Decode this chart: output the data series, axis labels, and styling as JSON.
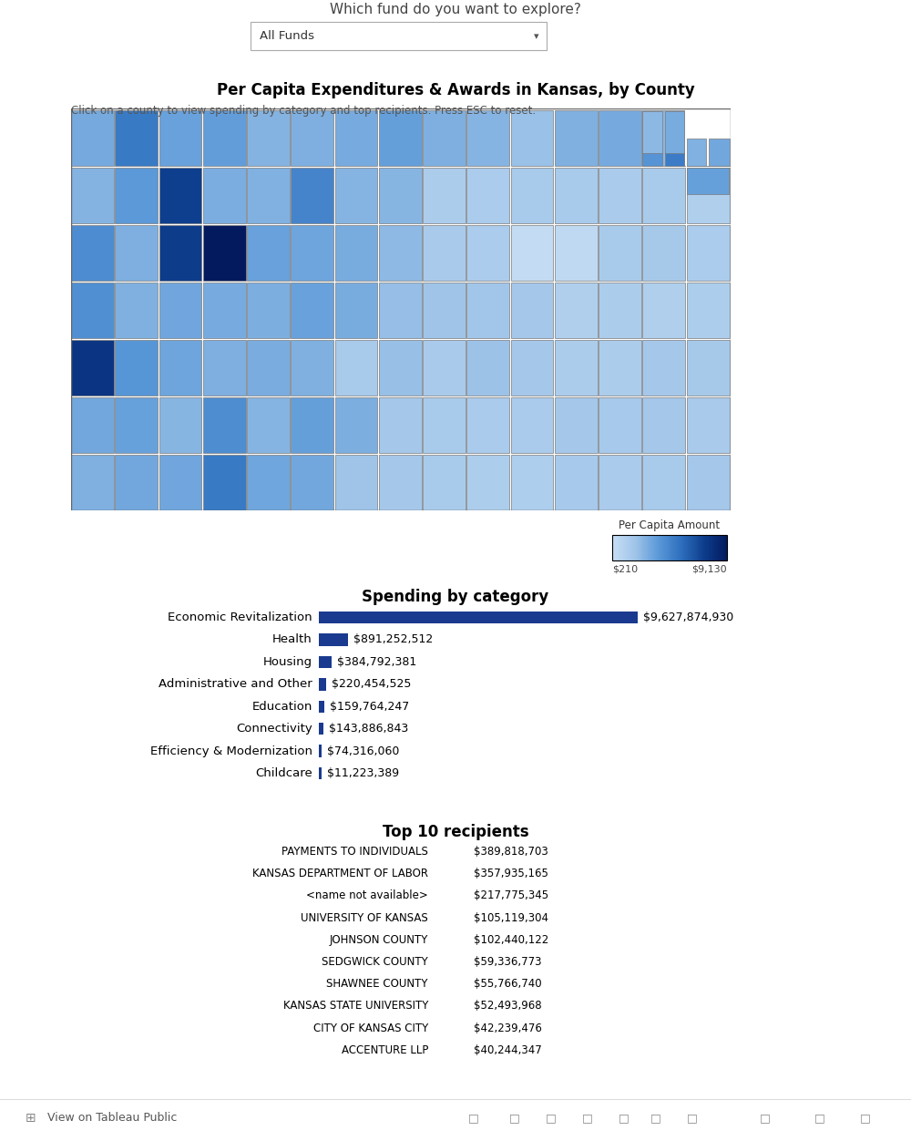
{
  "title_top": "Which fund do you want to explore?",
  "dropdown_text": "All Funds",
  "map_title": "Per Capita Expenditures & Awards in Kansas, by County",
  "map_subtitle": "Click on a county to view spending by category and top recipients. Press ESC to reset.",
  "colorbar_title": "Per Capita Amount",
  "colorbar_min_label": "$210",
  "colorbar_max_label": "$9,130",
  "spending_title": "Spending by category",
  "spending_categories": [
    "Economic Revitalization",
    "Health",
    "Housing",
    "Administrative and Other",
    "Education",
    "Connectivity",
    "Efficiency & Modernization",
    "Childcare"
  ],
  "spending_values": [
    9627874930,
    891252512,
    384792381,
    220454525,
    159764247,
    143886843,
    74316060,
    11223389
  ],
  "spending_labels": [
    "$9,627,874,930",
    "$891,252,512",
    "$384,792,381",
    "$220,454,525",
    "$159,764,247",
    "$143,886,843",
    "$74,316,060",
    "$11,223,389"
  ],
  "bar_color": "#1a3a8f",
  "recipients_title": "Top 10 recipients",
  "recipients": [
    "PAYMENTS TO INDIVIDUALS",
    "KANSAS DEPARTMENT OF LABOR",
    "<name not available>",
    "UNIVERSITY OF KANSAS",
    "JOHNSON COUNTY",
    "SEDGWICK COUNTY",
    "SHAWNEE COUNTY",
    "KANSAS STATE UNIVERSITY",
    "CITY OF KANSAS CITY",
    "ACCENTURE LLP"
  ],
  "recipient_values": [
    "$389,818,703",
    "$357,935,165",
    "$217,775,345",
    "$105,119,304",
    "$102,440,122",
    "$59,336,773",
    "$55,766,740",
    "$52,493,968",
    "$42,239,476",
    "$40,244,347"
  ],
  "bg_color": "#ffffff",
  "map_border_color": "#7a7a7a",
  "footer_text": "View on Tableau Public",
  "county_colors": [
    [
      3,
      4,
      5,
      4,
      3,
      3,
      4,
      3,
      3,
      3,
      3,
      3,
      3,
      3,
      4
    ],
    [
      3,
      4,
      5,
      3,
      3,
      4,
      3,
      3,
      2,
      2,
      2,
      2,
      2,
      2,
      2
    ],
    [
      4,
      3,
      5,
      5,
      3,
      3,
      3,
      3,
      2,
      2,
      1,
      1,
      2,
      2,
      2
    ],
    [
      4,
      3,
      3,
      3,
      3,
      3,
      3,
      2,
      2,
      2,
      2,
      2,
      2,
      2,
      2
    ],
    [
      5,
      4,
      3,
      3,
      3,
      3,
      2,
      2,
      2,
      2,
      2,
      2,
      2,
      2,
      2
    ],
    [
      3,
      3,
      3,
      4,
      3,
      3,
      3,
      2,
      2,
      2,
      2,
      2,
      2,
      2,
      2
    ],
    [
      3,
      3,
      3,
      4,
      3,
      3,
      2,
      2,
      2,
      2,
      2,
      2,
      2,
      2,
      2
    ]
  ],
  "color_levels": [
    "#c8dff5",
    "#9fc4e8",
    "#5b99d8",
    "#2e6fbe",
    "#0d3d8c",
    "#041a5e"
  ]
}
